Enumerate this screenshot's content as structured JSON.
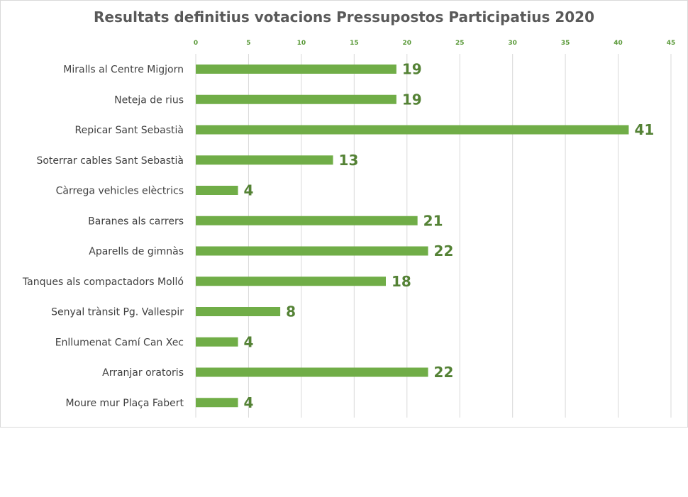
{
  "chart_data": {
    "type": "bar",
    "orientation": "horizontal",
    "title": "Resultats definitius votacions Pressupostos Participatius 2020",
    "categories": [
      "Miralls al Centre Migjorn",
      "Neteja de rius",
      "Repicar Sant Sebastià",
      "Soterrar cables Sant Sebastià",
      "Càrrega vehicles elèctrics",
      "Baranes als carrers",
      "Aparells de gimnàs",
      "Tanques als compactadors Molló",
      "Senyal trànsit Pg. Vallespir",
      "Enllumenat Camí Can Xec",
      "Arranjar oratoris",
      "Moure mur Plaça Fabert"
    ],
    "values": [
      19,
      19,
      41,
      13,
      4,
      21,
      22,
      18,
      8,
      4,
      22,
      4
    ],
    "xlim": [
      0,
      45
    ],
    "xticks": [
      0,
      5,
      10,
      15,
      20,
      25,
      30,
      35,
      40,
      45
    ],
    "xaxis_position": "top",
    "grid": true,
    "legend": "none",
    "data_labels": true
  },
  "colors": {
    "bar": "#70ad47",
    "data_label": "#548235",
    "tick_label": "#5b9a3a",
    "gridline": "#d9d9d9",
    "title": "#595959"
  }
}
